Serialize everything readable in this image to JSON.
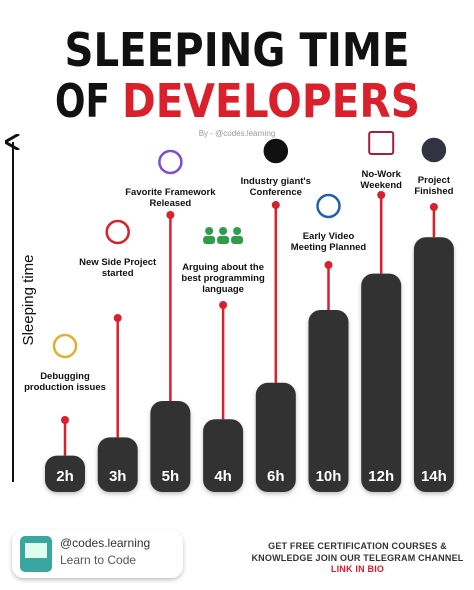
{
  "header": {
    "title_line1": "SLEEPING TIME",
    "title_line2_a": "OF",
    "title_line2_b": "DEVELOPERS",
    "byline": "By - @codes.learning"
  },
  "chart_data": {
    "type": "bar",
    "y_label": "Sleeping time",
    "categories": [
      "Debugging production issues",
      "New Side Project started",
      "Favorite Framework Released",
      "Arguing about the best programming language",
      "Industry giant's Conference",
      "Early Video Meeting Planned",
      "No-Work Weekend",
      "Project Finished"
    ],
    "values": [
      2,
      3,
      5,
      4,
      6,
      10,
      12,
      14
    ],
    "value_labels": [
      "2h",
      "3h",
      "5h",
      "4h",
      "6h",
      "10h",
      "12h",
      "14h"
    ],
    "color": "#333333",
    "line_color": "#d9202b"
  },
  "footer": {
    "handle": "@codes.learning",
    "tagline": "Learn to Code",
    "cta_line1": "GET FREE CERTIFICATION COURSES &",
    "cta_line2": "KNOWLEDGE JOIN OUR TELEGRAM CHANNEL",
    "cta_line3": "LINK IN BIO"
  }
}
